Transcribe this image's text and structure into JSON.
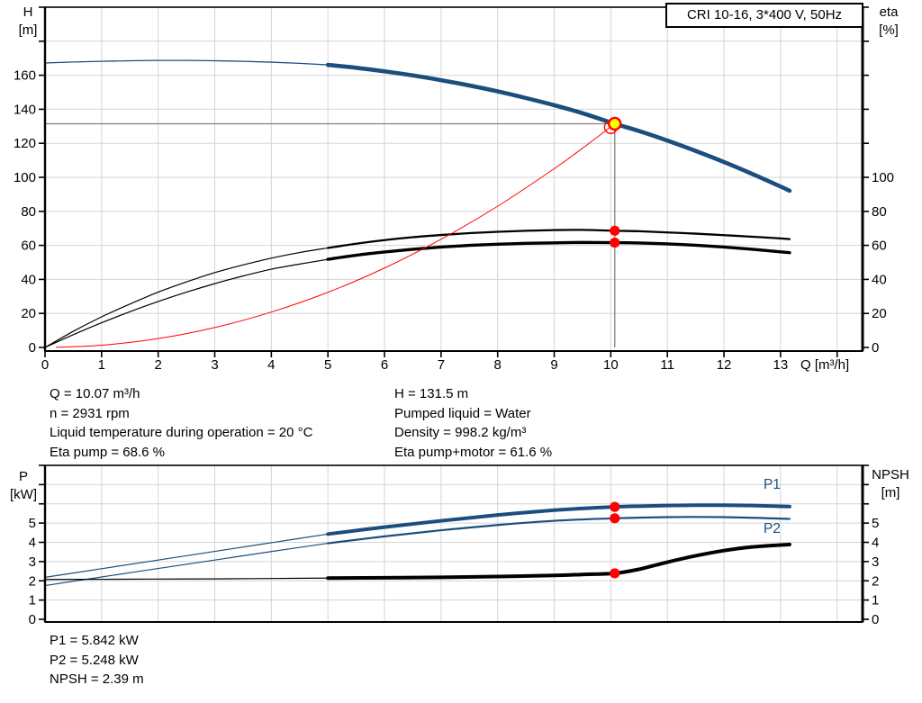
{
  "header": {
    "title_box": "CRI 10-16, 3*400 V, 50Hz"
  },
  "colors": {
    "curve_blue": "#1b4e7e",
    "curve_black": "#000000",
    "red": "#ff0000",
    "yellow": "#ffff00",
    "grid": "#d4d4d4",
    "axis": "#000000",
    "ref_line": "#808080",
    "text": "#000000"
  },
  "axis_corner_labels": {
    "top_left_1": "H",
    "top_left_2": "[m]",
    "top_right_1": "eta",
    "top_right_2": "[%]",
    "x_label": "Q [m³/h]",
    "bottom_left_1": "P",
    "bottom_left_2": "[kW]",
    "bottom_right_1": "NPSH",
    "bottom_right_2": "[m]"
  },
  "results_top": {
    "col1": [
      "Q = 10.07 m³/h",
      "n = 2931 rpm",
      "Liquid temperature during operation = 20 °C",
      "Eta pump = 68.6 %"
    ],
    "col2": [
      "H = 131.5 m",
      "Pumped liquid = Water",
      "Density = 998.2 kg/m³",
      "Eta pump+motor = 61.6 %"
    ]
  },
  "results_bottom": [
    "P1 = 5.842 kW",
    "P2 = 5.248 kW",
    "NPSH = 2.39 m"
  ],
  "chart_data": [
    {
      "id": "top",
      "type": "line",
      "title": "CRI 10-16, 3*400 V, 50Hz",
      "x_axis": {
        "label": "Q [m³/h]",
        "min": 0,
        "max": 14.45,
        "tick_step": 1,
        "tick_label_max": 13,
        "show_labels": true
      },
      "y_left": {
        "label": "H [m]",
        "min": 0,
        "max": 200,
        "tick_step": 20,
        "tick_label_max": 160
      },
      "y_right": {
        "label": "eta [%]",
        "min": 0,
        "max": 200,
        "tick_step": 20,
        "tick_label_max": 100
      },
      "grid": true,
      "series": [
        {
          "id": "qh-curve-thin",
          "name": "Head (outside preferred range)",
          "axis": "left",
          "color": "#1b4e7e",
          "width": 1.3,
          "points": [
            [
              0,
              167.2
            ],
            [
              0.5,
              167.8
            ],
            [
              1,
              168.2
            ],
            [
              1.5,
              168.5
            ],
            [
              2,
              168.7
            ],
            [
              2.5,
              168.7
            ],
            [
              3,
              168.5
            ],
            [
              3.5,
              168.2
            ],
            [
              4,
              167.7
            ],
            [
              4.5,
              167.0
            ],
            [
              5,
              166.1
            ]
          ]
        },
        {
          "id": "qh-curve",
          "name": "Head",
          "axis": "left",
          "color": "#1b4e7e",
          "width": 4.6,
          "points": [
            [
              5,
              166.1
            ],
            [
              5.5,
              164.4
            ],
            [
              6,
              162.3
            ],
            [
              6.5,
              159.9
            ],
            [
              7,
              157.1
            ],
            [
              7.5,
              154.0
            ],
            [
              8,
              150.5
            ],
            [
              8.5,
              146.6
            ],
            [
              9,
              142.4
            ],
            [
              9.5,
              137.7
            ],
            [
              10.07,
              131.5
            ],
            [
              10.5,
              127.2
            ],
            [
              11,
              121.6
            ],
            [
              11.5,
              115.5
            ],
            [
              12,
              109.0
            ],
            [
              12.5,
              102.0
            ],
            [
              13,
              94.6
            ],
            [
              13.16,
              92.1
            ]
          ]
        },
        {
          "id": "eta-pump-curve-thin",
          "name": "Eta pump (outside preferred range)",
          "axis": "right",
          "color": "#000000",
          "width": 1.2,
          "points": [
            [
              0,
              0
            ],
            [
              0.5,
              9.5
            ],
            [
              1,
              18
            ],
            [
              1.5,
              25.5
            ],
            [
              2,
              32.5
            ],
            [
              2.5,
              38.5
            ],
            [
              3,
              44
            ],
            [
              3.5,
              48.5
            ],
            [
              4,
              52.5
            ],
            [
              4.5,
              55.8
            ],
            [
              5,
              58.5
            ]
          ]
        },
        {
          "id": "eta-pump-curve",
          "name": "Eta pump",
          "axis": "right",
          "color": "#000000",
          "width": 2.3,
          "points": [
            [
              5,
              58.5
            ],
            [
              5.5,
              61
            ],
            [
              6,
              63.1
            ],
            [
              6.5,
              64.8
            ],
            [
              7,
              66.1
            ],
            [
              7.5,
              67.2
            ],
            [
              8,
              68
            ],
            [
              8.5,
              68.6
            ],
            [
              9,
              69
            ],
            [
              9.5,
              69.1
            ],
            [
              10.07,
              68.6
            ],
            [
              10.5,
              68.3
            ],
            [
              11,
              67.6
            ],
            [
              11.5,
              66.9
            ],
            [
              12,
              66
            ],
            [
              12.5,
              65.1
            ],
            [
              13,
              64.1
            ],
            [
              13.16,
              63.7
            ]
          ]
        },
        {
          "id": "eta-pump-motor-curve-thin",
          "name": "Eta pump+motor (outside preferred range)",
          "axis": "right",
          "color": "#000000",
          "width": 1.2,
          "points": [
            [
              0,
              0
            ],
            [
              0.5,
              7.5
            ],
            [
              1,
              14.5
            ],
            [
              1.5,
              21
            ],
            [
              2,
              27
            ],
            [
              2.5,
              32.5
            ],
            [
              3,
              37.5
            ],
            [
              3.5,
              42
            ],
            [
              4,
              46
            ],
            [
              4.5,
              49
            ],
            [
              5,
              51.8
            ]
          ]
        },
        {
          "id": "eta-pump-motor-curve",
          "name": "Eta pump+motor",
          "axis": "right",
          "color": "#000000",
          "width": 3.4,
          "points": [
            [
              5,
              51.8
            ],
            [
              5.5,
              54.2
            ],
            [
              6,
              56.1
            ],
            [
              6.5,
              57.7
            ],
            [
              7,
              59
            ],
            [
              7.5,
              60
            ],
            [
              8,
              60.7
            ],
            [
              8.5,
              61.2
            ],
            [
              9,
              61.5
            ],
            [
              9.5,
              61.7
            ],
            [
              10.07,
              61.6
            ],
            [
              10.5,
              61.4
            ],
            [
              11,
              60.9
            ],
            [
              11.5,
              60.1
            ],
            [
              12,
              59
            ],
            [
              12.5,
              57.7
            ],
            [
              13,
              56.2
            ],
            [
              13.16,
              55.7
            ]
          ]
        },
        {
          "id": "system-curve",
          "name": "System characteristic",
          "axis": "left",
          "color": "#ff0000",
          "width": 1,
          "points": [
            [
              0.2,
              0.1
            ],
            [
              1,
              1.3
            ],
            [
              2,
              5.2
            ],
            [
              3,
              11.7
            ],
            [
              4,
              20.8
            ],
            [
              5,
              32.4
            ],
            [
              6,
              46.7
            ],
            [
              7,
              63.6
            ],
            [
              8,
              83.0
            ],
            [
              9,
              105.1
            ],
            [
              9.5,
              117.1
            ],
            [
              10,
              129.7
            ]
          ]
        }
      ],
      "ref_lines": [
        {
          "type": "h",
          "value": 131.5,
          "from": 0,
          "to": 10.07,
          "axis": "left"
        },
        {
          "type": "v",
          "value": 10.07,
          "from": 0,
          "to": 131.5,
          "axis": "left"
        }
      ],
      "markers": [
        {
          "id": "requested-duty-point",
          "x": 10.0,
          "y": 129.5,
          "axis": "left",
          "style": "red-open",
          "r": 7
        },
        {
          "id": "duty-point",
          "x": 10.07,
          "y": 131.5,
          "axis": "left",
          "style": "yellow-red-ring",
          "r": 6.5
        },
        {
          "id": "eta-pump-point",
          "x": 10.07,
          "y": 68.6,
          "axis": "right",
          "style": "red-dot",
          "r": 5.6
        },
        {
          "id": "eta-pump-motor-point",
          "x": 10.07,
          "y": 61.6,
          "axis": "right",
          "style": "red-dot",
          "r": 5.6
        }
      ],
      "series_labels": []
    },
    {
      "id": "bottom",
      "type": "line",
      "title": "",
      "x_axis": {
        "label": "Q [m³/h]",
        "min": 0,
        "max": 14.45,
        "tick_step": 1,
        "tick_label_max": 13,
        "show_labels": false
      },
      "y_left": {
        "label": "P [kW]",
        "min": 0,
        "max": 8,
        "tick_step": 1,
        "tick_label_max": 5
      },
      "y_right": {
        "label": "NPSH [m]",
        "min": 0,
        "max": 8,
        "tick_step": 1,
        "tick_label_max": 5
      },
      "grid": true,
      "series": [
        {
          "id": "p1-curve-thin",
          "name": "P1 (outside preferred range)",
          "axis": "left",
          "color": "#1b4e7e",
          "width": 1.2,
          "points": [
            [
              0,
              2.18
            ],
            [
              1,
              2.63
            ],
            [
              2,
              3.08
            ],
            [
              3,
              3.53
            ],
            [
              4,
              3.98
            ],
            [
              5,
              4.43
            ]
          ]
        },
        {
          "id": "p1-curve",
          "name": "P1",
          "axis": "left",
          "color": "#1b4e7e",
          "width": 4,
          "points": [
            [
              5,
              4.43
            ],
            [
              6,
              4.79
            ],
            [
              7,
              5.12
            ],
            [
              8,
              5.42
            ],
            [
              9,
              5.67
            ],
            [
              9.5,
              5.76
            ],
            [
              10.07,
              5.842
            ],
            [
              10.5,
              5.88
            ],
            [
              11,
              5.91
            ],
            [
              11.5,
              5.93
            ],
            [
              12,
              5.93
            ],
            [
              12.5,
              5.91
            ],
            [
              13.16,
              5.86
            ]
          ]
        },
        {
          "id": "p2-curve-thin",
          "name": "P2 (outside preferred range)",
          "axis": "left",
          "color": "#1b4e7e",
          "width": 1.2,
          "points": [
            [
              0,
              1.75
            ],
            [
              1,
              2.2
            ],
            [
              2,
              2.64
            ],
            [
              3,
              3.08
            ],
            [
              4,
              3.52
            ],
            [
              5,
              3.95
            ]
          ]
        },
        {
          "id": "p2-curve",
          "name": "P2",
          "axis": "left",
          "color": "#1b4e7e",
          "width": 2.2,
          "points": [
            [
              5,
              3.95
            ],
            [
              6,
              4.31
            ],
            [
              7,
              4.63
            ],
            [
              8,
              4.9
            ],
            [
              9,
              5.12
            ],
            [
              10.07,
              5.248
            ],
            [
              11,
              5.31
            ],
            [
              12,
              5.31
            ],
            [
              13.16,
              5.22
            ]
          ]
        },
        {
          "id": "npsh-curve-thin",
          "name": "NPSH (outside preferred range)",
          "axis": "right",
          "color": "#000000",
          "width": 1.2,
          "points": [
            [
              0,
              2.07
            ],
            [
              1,
              2.08
            ],
            [
              2,
              2.09
            ],
            [
              3,
              2.1
            ],
            [
              4,
              2.12
            ],
            [
              5,
              2.14
            ]
          ]
        },
        {
          "id": "npsh-curve",
          "name": "NPSH",
          "axis": "right",
          "color": "#000000",
          "width": 4,
          "points": [
            [
              5,
              2.14
            ],
            [
              6,
              2.16
            ],
            [
              7,
              2.18
            ],
            [
              8,
              2.22
            ],
            [
              9,
              2.28
            ],
            [
              9.5,
              2.33
            ],
            [
              10.07,
              2.39
            ],
            [
              10.5,
              2.6
            ],
            [
              11,
              2.97
            ],
            [
              11.5,
              3.3
            ],
            [
              12,
              3.57
            ],
            [
              12.5,
              3.76
            ],
            [
              13.16,
              3.89
            ]
          ]
        }
      ],
      "ref_lines": [],
      "markers": [
        {
          "id": "p1-point",
          "x": 10.07,
          "y": 5.842,
          "axis": "left",
          "style": "red-dot",
          "r": 5.6
        },
        {
          "id": "p2-point",
          "x": 10.07,
          "y": 5.248,
          "axis": "left",
          "style": "red-dot",
          "r": 5.6
        },
        {
          "id": "npsh-point",
          "x": 10.07,
          "y": 2.39,
          "axis": "right",
          "style": "red-dot",
          "r": 5.6
        }
      ],
      "series_labels": [
        {
          "text": "P1",
          "x": 12.85,
          "y": 6.78,
          "color": "#1b4e7e"
        },
        {
          "text": "P2",
          "x": 12.85,
          "y": 4.48,
          "color": "#1b4e7e"
        }
      ]
    }
  ]
}
